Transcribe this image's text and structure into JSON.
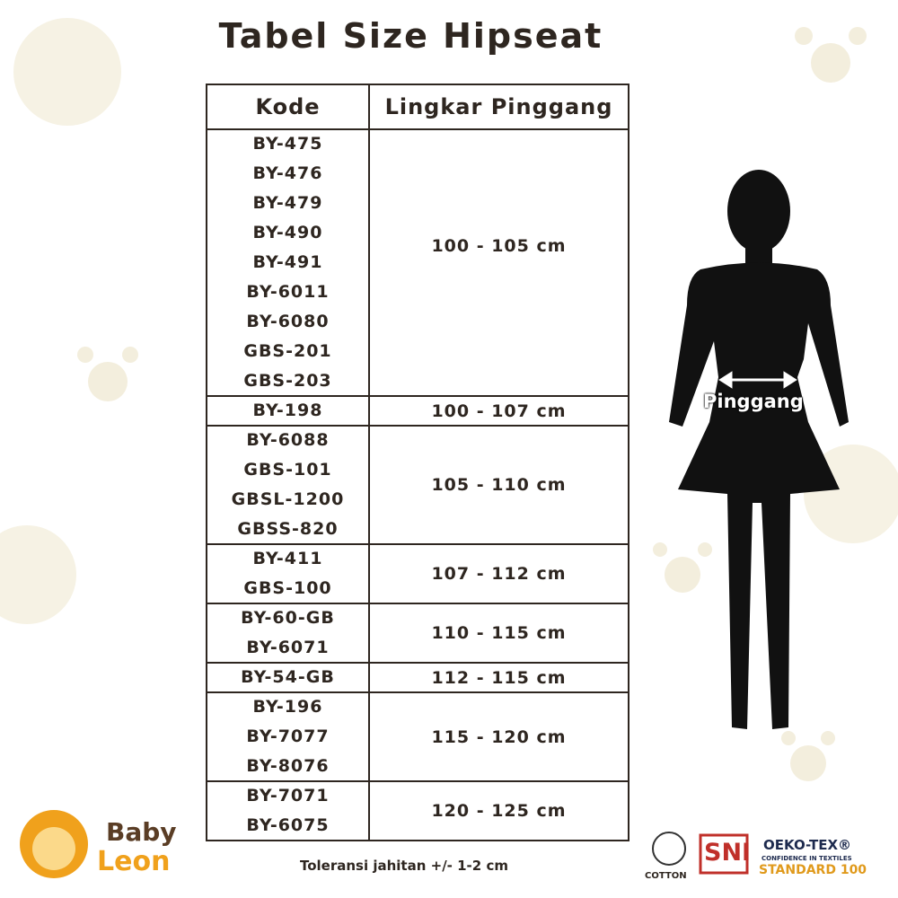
{
  "header": {
    "title": "Tabel Size Hipseat"
  },
  "table": {
    "columns": [
      "Kode",
      "Lingkar Pinggang"
    ],
    "rows": [
      {
        "codes": [
          "BY-475",
          "BY-476",
          "BY-479",
          "BY-490",
          "BY-491",
          "BY-6011",
          "BY-6080",
          "GBS-201",
          "GBS-203"
        ],
        "size": "100 - 105 cm"
      },
      {
        "codes": [
          "BY-198"
        ],
        "size": "100 - 107 cm"
      },
      {
        "codes": [
          "BY-6088",
          "GBS-101",
          "GBSL-1200",
          "GBSS-820"
        ],
        "size": "105 - 110 cm"
      },
      {
        "codes": [
          "BY-411",
          "GBS-100"
        ],
        "size": "107 - 112 cm"
      },
      {
        "codes": [
          "BY-60-GB",
          "BY-6071"
        ],
        "size": "110 - 115 cm"
      },
      {
        "codes": [
          "BY-54-GB"
        ],
        "size": "112 - 115 cm"
      },
      {
        "codes": [
          "BY-196",
          "BY-7077",
          "BY-8076"
        ],
        "size": "115 - 120 cm"
      },
      {
        "codes": [
          "BY-7071",
          "BY-6075"
        ],
        "size": "120 - 125 cm"
      }
    ]
  },
  "figure": {
    "label": "Pinggang"
  },
  "footer": {
    "note": "Toleransi jahitan +/- 1-2 cm",
    "brand": {
      "line1": "Baby",
      "line2": "Leon"
    },
    "badges": {
      "cotton": "COTTON",
      "sni": "SNI",
      "oeko": "OEKO-TEX®",
      "oeko_sub": "CONFIDENCE IN TEXTILES",
      "oeko_std": "STANDARD 100"
    }
  }
}
